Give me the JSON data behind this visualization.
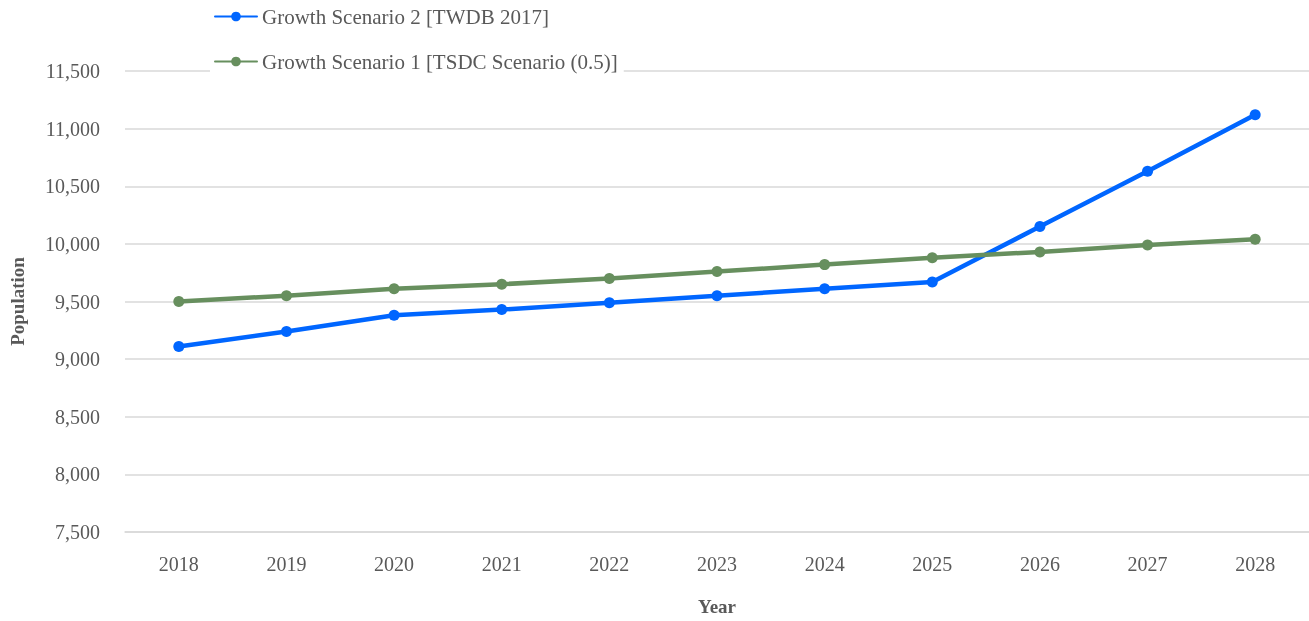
{
  "chart_data": {
    "type": "line",
    "xlabel": "Year",
    "ylabel": "Population",
    "categories": [
      "2018",
      "2019",
      "2020",
      "2021",
      "2022",
      "2023",
      "2024",
      "2025",
      "2026",
      "2027",
      "2028"
    ],
    "series": [
      {
        "name": "Growth Scenario 2 [TWDB 2017]",
        "color": "#0066ff",
        "values": [
          9110,
          9240,
          9380,
          9430,
          9490,
          9550,
          9610,
          9670,
          10150,
          10630,
          11120
        ]
      },
      {
        "name": "Growth Scenario 1 [TSDC Scenario (0.5)]",
        "color": "#678f5e",
        "values": [
          9500,
          9550,
          9610,
          9650,
          9700,
          9760,
          9820,
          9880,
          9930,
          9990,
          10040
        ]
      }
    ],
    "ylim": [
      7500,
      11500
    ],
    "yticks": [
      {
        "value": 7500,
        "label": "7,500"
      },
      {
        "value": 8000,
        "label": "8,000"
      },
      {
        "value": 8500,
        "label": "8,500"
      },
      {
        "value": 9000,
        "label": "9,000"
      },
      {
        "value": 9500,
        "label": "9,500"
      },
      {
        "value": 10000,
        "label": "10,000"
      },
      {
        "value": 10500,
        "label": "10,500"
      },
      {
        "value": 11000,
        "label": "11,000"
      },
      {
        "value": 11500,
        "label": "11,500"
      }
    ],
    "grid": "y",
    "legend": "top",
    "marker": "circle",
    "line_style": "solid"
  }
}
